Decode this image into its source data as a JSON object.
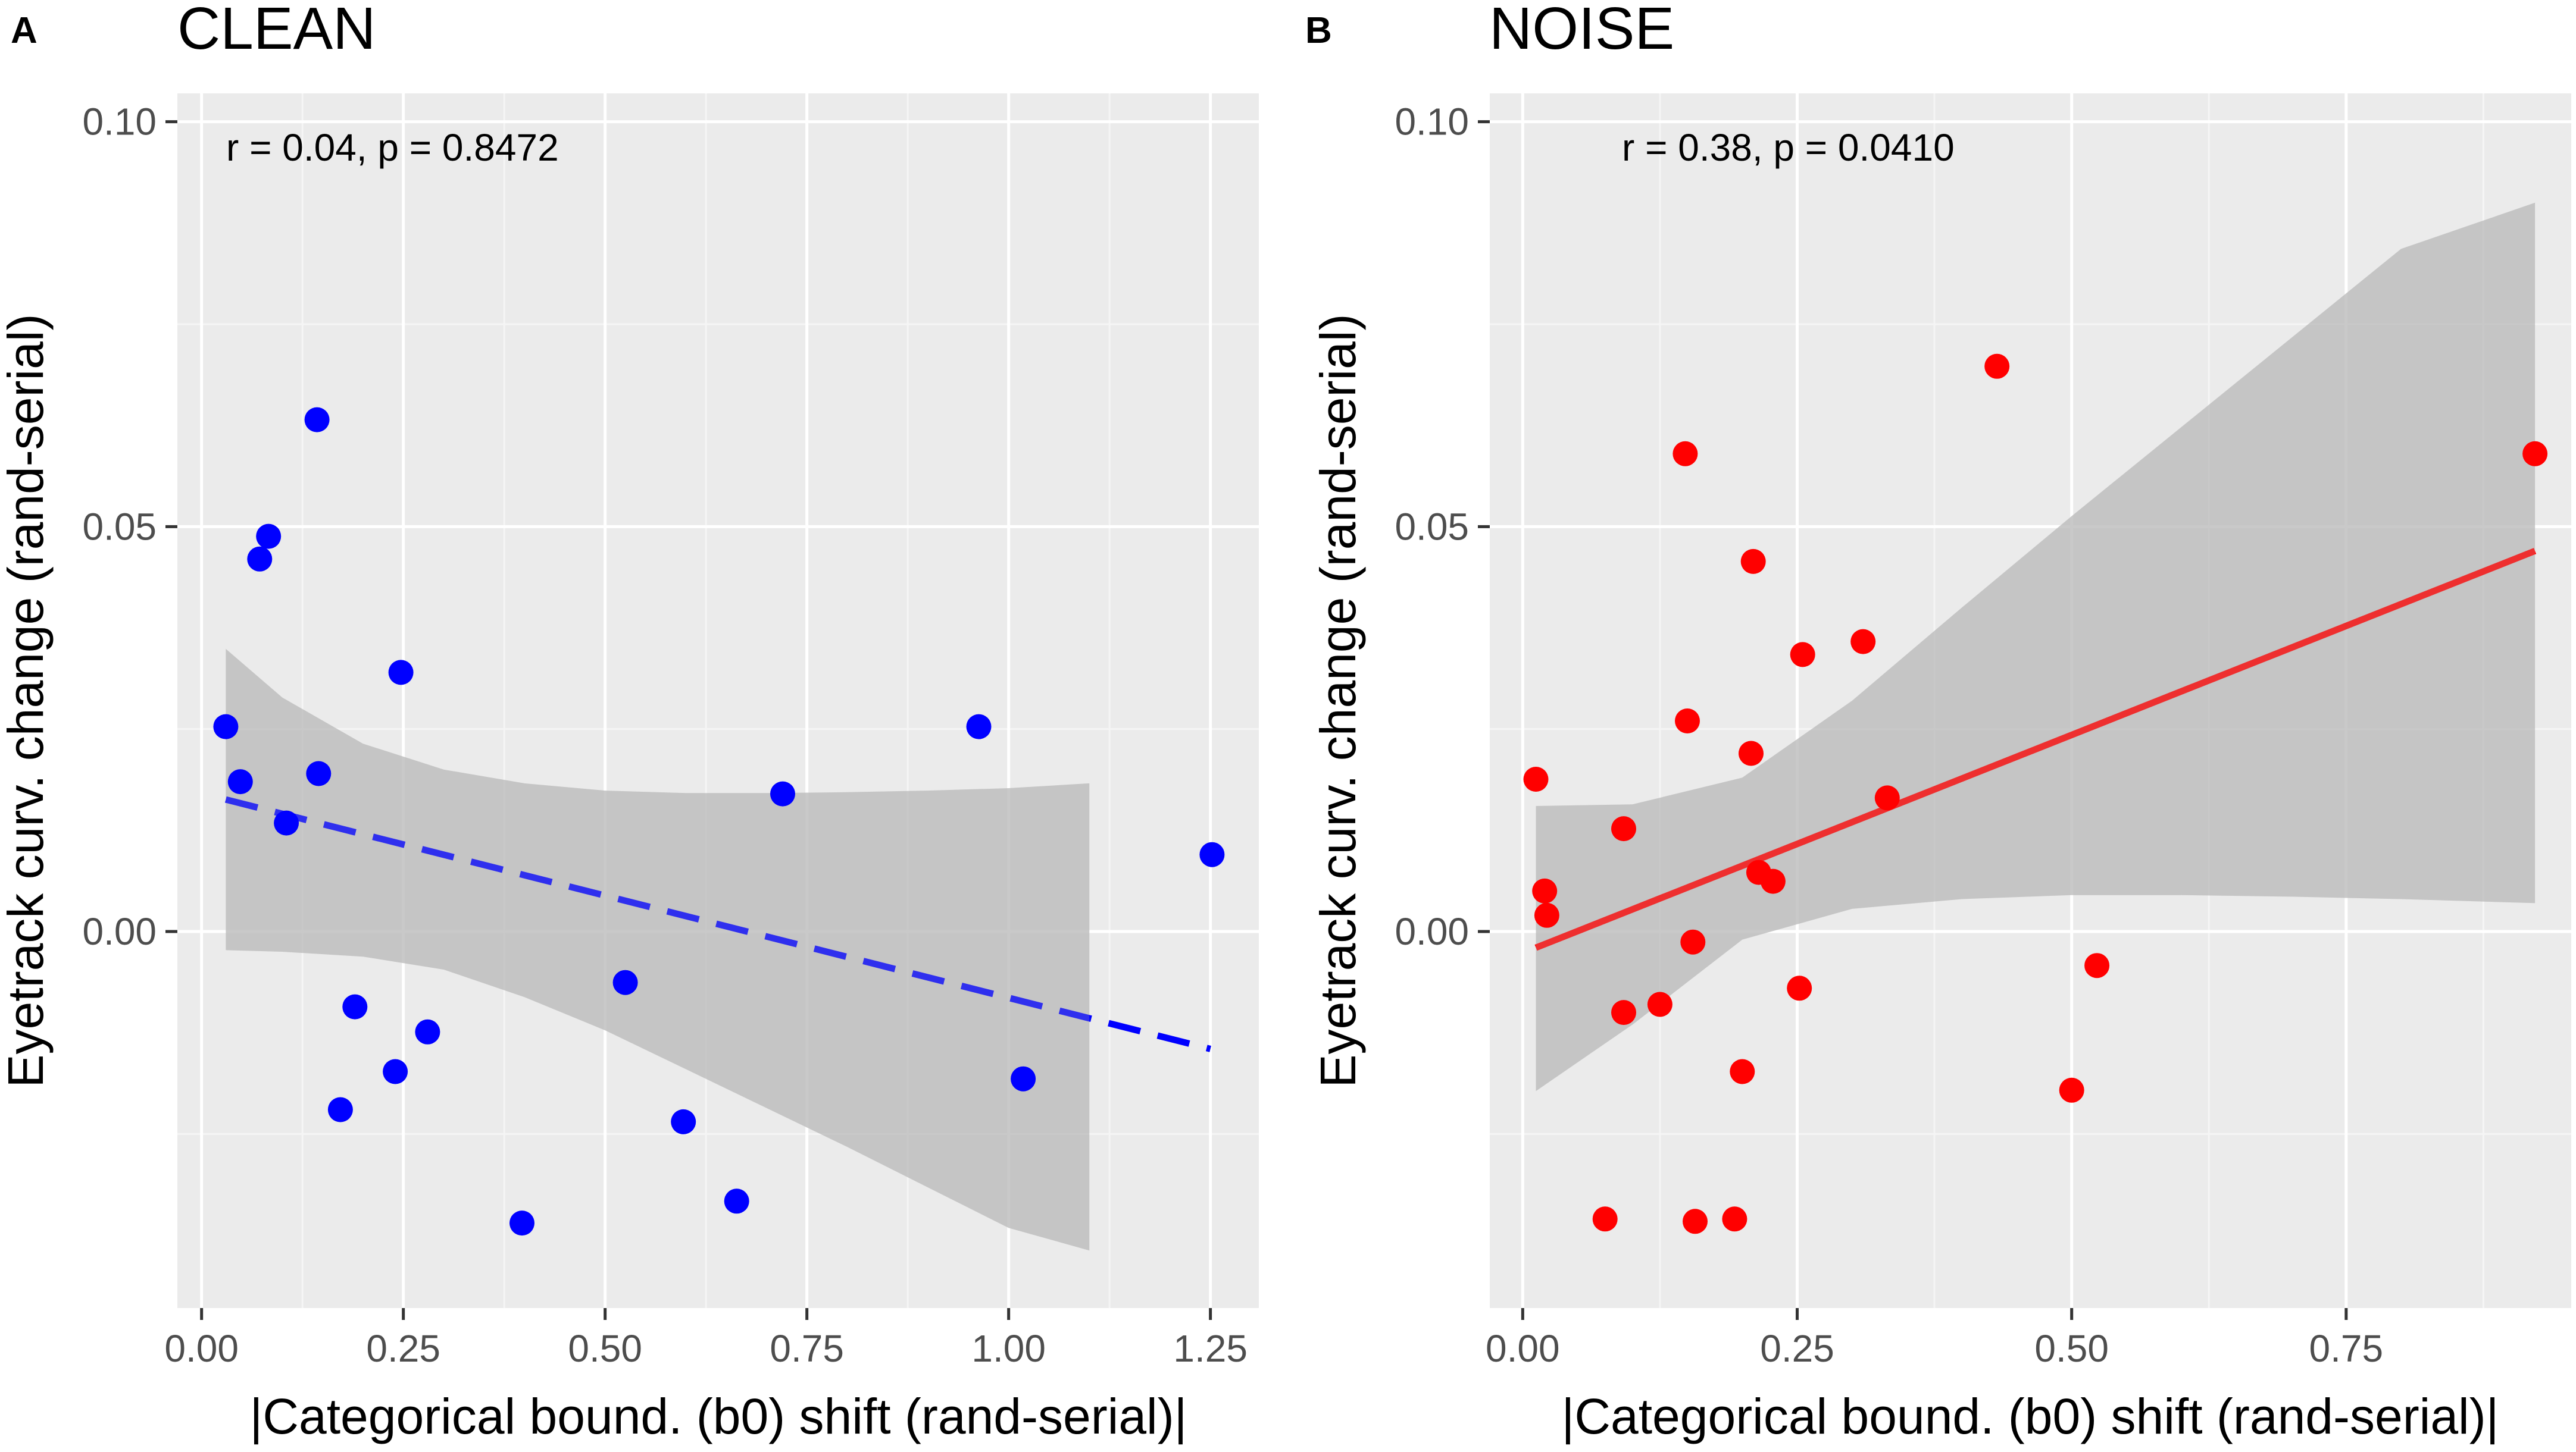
{
  "colors": {
    "panel_bg": "#ebebeb",
    "grid_major": "#ffffff",
    "grid_minor": "#f5f5f5",
    "ribbon": "#bdbdbd",
    "tick": "#333333",
    "tick_label": "#4d4d4d",
    "clean_point": "#0000ff",
    "noise_point": "#ff0000",
    "clean_line": "#0000ff",
    "noise_line": "#ff0000"
  },
  "chart_data": [
    {
      "type": "scatter",
      "panel": "A",
      "title": "CLEAN",
      "xlabel": "|Categorical bound. (b0) shift (rand-serial)|",
      "ylabel": "Eyetrack curv. change (rand-serial)",
      "xlim": [
        -0.03,
        1.31
      ],
      "ylim": [
        -0.0465,
        0.1035
      ],
      "xticks": [
        0.0,
        0.25,
        0.5,
        0.75,
        1.0,
        1.25
      ],
      "xtick_labels": [
        "0.00",
        "0.25",
        "0.50",
        "0.75",
        "1.00",
        "1.25"
      ],
      "yticks": [
        0.0,
        0.05,
        0.1
      ],
      "ytick_labels": [
        "0.00",
        "0.05",
        "0.10"
      ],
      "annotation": {
        "text": "r = 0.04,  p = 0.8472",
        "x": 0.03,
        "y": 0.1
      },
      "point_color": "#0000ff",
      "points": [
        {
          "x": 0.03,
          "y": 0.0253
        },
        {
          "x": 0.048,
          "y": 0.0185
        },
        {
          "x": 0.072,
          "y": 0.046
        },
        {
          "x": 0.083,
          "y": 0.0488
        },
        {
          "x": 0.105,
          "y": 0.0134
        },
        {
          "x": 0.143,
          "y": 0.0632
        },
        {
          "x": 0.145,
          "y": 0.0195
        },
        {
          "x": 0.172,
          "y": -0.022
        },
        {
          "x": 0.19,
          "y": -0.0093
        },
        {
          "x": 0.24,
          "y": -0.0173
        },
        {
          "x": 0.247,
          "y": 0.032
        },
        {
          "x": 0.28,
          "y": -0.0124
        },
        {
          "x": 0.397,
          "y": -0.036
        },
        {
          "x": 0.525,
          "y": -0.0063
        },
        {
          "x": 0.597,
          "y": -0.0235
        },
        {
          "x": 0.663,
          "y": -0.0333
        },
        {
          "x": 0.72,
          "y": 0.017
        },
        {
          "x": 0.963,
          "y": 0.0253
        },
        {
          "x": 1.018,
          "y": -0.0182
        },
        {
          "x": 1.252,
          "y": 0.0095
        }
      ],
      "fit": {
        "style": "dashed",
        "color": "#0000ff",
        "x": [
          0.03,
          1.25
        ],
        "y": [
          0.0163,
          -0.0145
        ]
      },
      "ribbon": {
        "x": [
          0.03,
          0.1,
          0.2,
          0.3,
          0.4,
          0.5,
          0.6,
          0.7,
          0.8,
          0.9,
          1.0,
          1.1
        ],
        "upper": [
          0.0349,
          0.0289,
          0.0232,
          0.02,
          0.0183,
          0.0174,
          0.0171,
          0.0171,
          0.0172,
          0.0174,
          0.0177,
          0.0183
        ],
        "lower": [
          -0.0023,
          -0.0025,
          -0.0031,
          -0.0047,
          -0.0081,
          -0.0122,
          -0.017,
          -0.0218,
          -0.0266,
          -0.0316,
          -0.0366,
          -0.0394
        ]
      }
    },
    {
      "type": "scatter",
      "panel": "B",
      "title": "NOISE",
      "xlabel": "|Categorical bound. (b0) shift (rand-serial)|",
      "ylabel": "Eyetrack curv. change (rand-serial)",
      "xlim": [
        -0.03,
        0.955
      ],
      "ylim": [
        -0.0465,
        0.1035
      ],
      "xticks": [
        0.0,
        0.25,
        0.5,
        0.75
      ],
      "xtick_labels": [
        "0.00",
        "0.25",
        "0.50",
        "0.75"
      ],
      "yticks": [
        0.0,
        0.05,
        0.1
      ],
      "ytick_labels": [
        "0.00",
        "0.05",
        "0.10"
      ],
      "annotation": {
        "text": "r = 0.38,  p = 0.0410",
        "x": 0.05,
        "y": 0.1
      },
      "point_color": "#ff0000",
      "points": [
        {
          "x": 0.012,
          "y": 0.0188
        },
        {
          "x": 0.02,
          "y": 0.005
        },
        {
          "x": 0.022,
          "y": 0.002
        },
        {
          "x": 0.075,
          "y": -0.0355
        },
        {
          "x": 0.092,
          "y": 0.0127
        },
        {
          "x": 0.092,
          "y": -0.01
        },
        {
          "x": 0.125,
          "y": -0.009
        },
        {
          "x": 0.148,
          "y": 0.059
        },
        {
          "x": 0.15,
          "y": 0.026
        },
        {
          "x": 0.155,
          "y": -0.0013
        },
        {
          "x": 0.157,
          "y": -0.0358
        },
        {
          "x": 0.193,
          "y": -0.0355
        },
        {
          "x": 0.2,
          "y": -0.0173
        },
        {
          "x": 0.208,
          "y": 0.022
        },
        {
          "x": 0.21,
          "y": 0.0457
        },
        {
          "x": 0.215,
          "y": 0.0073
        },
        {
          "x": 0.228,
          "y": 0.0062
        },
        {
          "x": 0.252,
          "y": -0.007
        },
        {
          "x": 0.255,
          "y": 0.0342
        },
        {
          "x": 0.31,
          "y": 0.0358
        },
        {
          "x": 0.332,
          "y": 0.0165
        },
        {
          "x": 0.432,
          "y": 0.0698
        },
        {
          "x": 0.5,
          "y": -0.0196
        },
        {
          "x": 0.523,
          "y": -0.0042
        },
        {
          "x": 0.922,
          "y": 0.059
        }
      ],
      "fit": {
        "style": "solid",
        "color": "#ff0000",
        "x": [
          0.012,
          0.922
        ],
        "y": [
          -0.002,
          0.047
        ]
      },
      "ribbon": {
        "x": [
          0.012,
          0.1,
          0.2,
          0.3,
          0.4,
          0.5,
          0.6,
          0.7,
          0.8,
          0.922
        ],
        "upper": [
          0.0155,
          0.0157,
          0.019,
          0.0285,
          0.04,
          0.0513,
          0.0623,
          0.0733,
          0.0843,
          0.09
        ],
        "lower": [
          -0.0197,
          -0.0115,
          -0.001,
          0.0028,
          0.004,
          0.0045,
          0.0045,
          0.0043,
          0.004,
          0.0035
        ]
      }
    }
  ]
}
